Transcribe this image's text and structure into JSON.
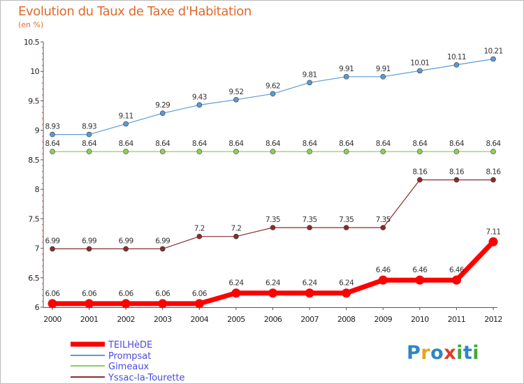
{
  "title": "Evolution du Taux de Taxe d'Habitation",
  "unit": "(en %)",
  "logo": {
    "text": "Proxiti",
    "letters": [
      "P",
      "r",
      "o",
      "x",
      "i",
      "t",
      "i"
    ],
    "colors": [
      "#2e86c8",
      "#f0a01a",
      "#2e86c8",
      "#e23a24",
      "#46a834",
      "#2e86c8",
      "#46a834"
    ]
  },
  "chart_data": {
    "type": "line",
    "title": "Evolution du Taux de Taxe d'Habitation",
    "ylabel": "(en %)",
    "xlabel": "",
    "x": [
      "2000",
      "2001",
      "2002",
      "2003",
      "2004",
      "2005",
      "2006",
      "2007",
      "2008",
      "2009",
      "2010",
      "2011",
      "2012"
    ],
    "ylim": [
      6,
      10.5
    ],
    "yticks": [
      "6",
      "6.5",
      "7",
      "7.5",
      "8",
      "8.5",
      "9",
      "9.5",
      "10",
      "10.5"
    ],
    "grid": false,
    "legend": "bottom-left",
    "series": [
      {
        "name": "TEILHèDE",
        "color": "#ff0000",
        "width": 7,
        "radius": 6.5,
        "values": [
          6.06,
          6.06,
          6.06,
          6.06,
          6.06,
          6.24,
          6.24,
          6.24,
          6.24,
          6.46,
          6.46,
          6.46,
          7.11
        ],
        "labels": [
          "6.06",
          "6.06",
          "6.06",
          "6.06",
          "6.06",
          "6.24",
          "6.24",
          "6.24",
          "6.24",
          "6.46",
          "6.46",
          "6.46",
          "7.11"
        ]
      },
      {
        "name": "Prompsat",
        "color": "#5b9bd5",
        "width": 1.2,
        "radius": 3.5,
        "values": [
          8.93,
          8.93,
          9.11,
          9.29,
          9.43,
          9.52,
          9.62,
          9.81,
          9.91,
          9.91,
          10.01,
          10.11,
          10.21
        ],
        "labels": [
          "8.93",
          "8.93",
          "9.11",
          "9.29",
          "9.43",
          "9.52",
          "9.62",
          "9.81",
          "9.91",
          "9.91",
          "10.01",
          "10.11",
          "10.21"
        ]
      },
      {
        "name": "Gimeaux",
        "color": "#8dd05a",
        "width": 1.2,
        "radius": 3.5,
        "values": [
          8.64,
          8.64,
          8.64,
          8.64,
          8.64,
          8.64,
          8.64,
          8.64,
          8.64,
          8.64,
          8.64,
          8.64,
          8.64
        ],
        "labels": [
          "8.64",
          "8.64",
          "8.64",
          "8.64",
          "8.64",
          "8.64",
          "8.64",
          "8.64",
          "8.64",
          "8.64",
          "8.64",
          "8.64",
          "8.64"
        ]
      },
      {
        "name": "Yssac-la-Tourette",
        "color": "#8b2c2c",
        "width": 1.2,
        "radius": 3.5,
        "values": [
          6.99,
          6.99,
          6.99,
          6.99,
          7.2,
          7.2,
          7.35,
          7.35,
          7.35,
          7.35,
          8.16,
          8.16,
          8.16
        ],
        "labels": [
          "6.99",
          "6.99",
          "6.99",
          "6.99",
          "7.2",
          "7.2",
          "7.35",
          "7.35",
          "7.35",
          "7.35",
          "8.16",
          "8.16",
          "8.16"
        ]
      }
    ]
  }
}
